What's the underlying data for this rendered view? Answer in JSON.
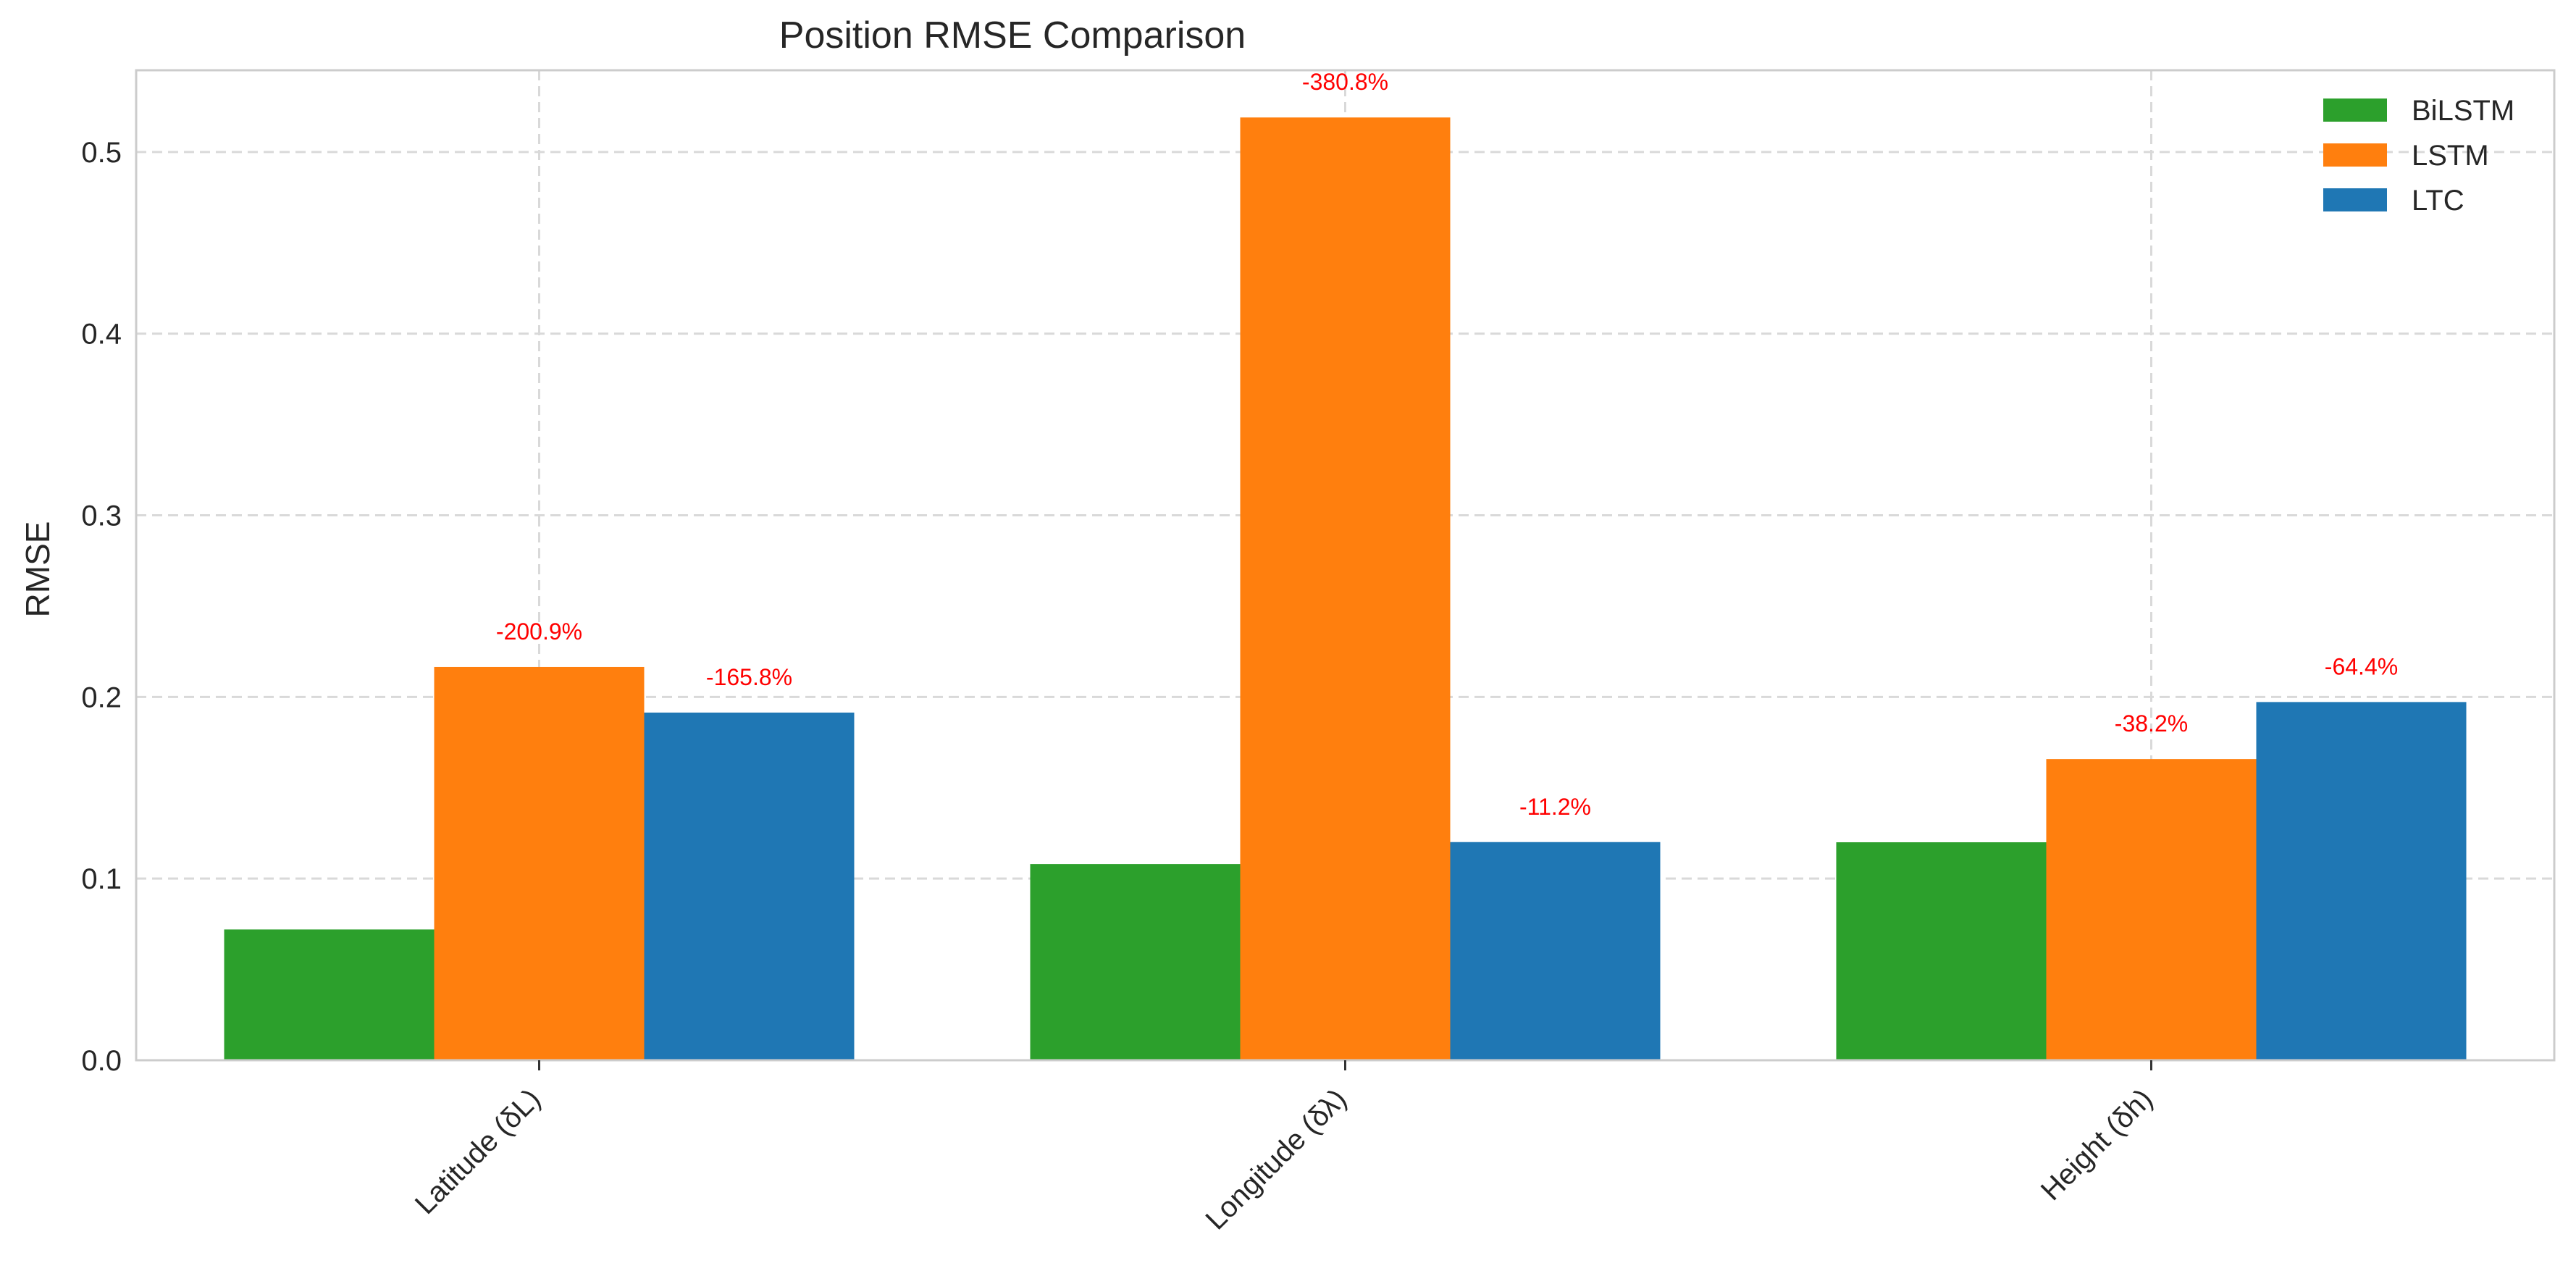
{
  "chart_data": {
    "type": "bar",
    "title": "Position RMSE Comparison",
    "xlabel": "",
    "ylabel": "RMSE",
    "categories": [
      "Latitude (δL)",
      "Longitude (δλ)",
      "Height (δh)"
    ],
    "series": [
      {
        "name": "BiLSTM",
        "color": "#2ca02c",
        "values": [
          0.072,
          0.108,
          0.12
        ]
      },
      {
        "name": "LSTM",
        "color": "#ff7f0e",
        "values": [
          0.2165,
          0.519,
          0.1658
        ]
      },
      {
        "name": "LTC",
        "color": "#1f77b4",
        "values": [
          0.1914,
          0.1201,
          0.1972
        ]
      }
    ],
    "annotations": [
      {
        "series": "LSTM",
        "category": "Latitude (δL)",
        "text": "-200.9%"
      },
      {
        "series": "LTC",
        "category": "Latitude (δL)",
        "text": "-165.8%"
      },
      {
        "series": "LSTM",
        "category": "Longitude (δλ)",
        "text": "-380.8%"
      },
      {
        "series": "LTC",
        "category": "Longitude (δλ)",
        "text": "-11.2%"
      },
      {
        "series": "LSTM",
        "category": "Height (δh)",
        "text": "-38.2%"
      },
      {
        "series": "LTC",
        "category": "Height (δh)",
        "text": "-64.4%"
      }
    ],
    "annotation_color": "#ff0000",
    "yticks": [
      "0.0",
      "0.1",
      "0.2",
      "0.3",
      "0.4",
      "0.5"
    ],
    "ylim": [
      0,
      0.545
    ],
    "grid": true,
    "legend_position": "top-right"
  }
}
